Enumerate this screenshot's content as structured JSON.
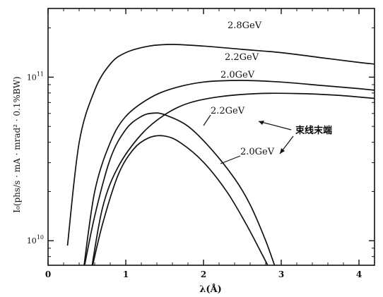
{
  "chart_data": {
    "type": "line",
    "xlabel": "λ(Å)",
    "ylabel": "I₀(phs/s · mA · mrad² · 0.1%BW)",
    "xlim": [
      0,
      4.2
    ],
    "ylim_log10": [
      9.85,
      11.42
    ],
    "x_ticks": [
      "0",
      "1",
      "2",
      "3",
      "4"
    ],
    "y_ticks": [
      {
        "value": 10,
        "base": "10",
        "exp": "10"
      },
      {
        "value": 11,
        "base": "10",
        "exp": "11"
      }
    ],
    "y_scale": "log",
    "annotation": "束线末端",
    "series": [
      {
        "name": "2.8GeV",
        "points": [
          [
            0.25,
            9.97
          ],
          [
            0.4,
            10.6
          ],
          [
            0.6,
            10.92
          ],
          [
            0.8,
            11.08
          ],
          [
            1.0,
            11.15
          ],
          [
            1.3,
            11.19
          ],
          [
            1.6,
            11.2
          ],
          [
            2.0,
            11.19
          ],
          [
            2.5,
            11.17
          ],
          [
            3.0,
            11.15
          ],
          [
            3.5,
            11.12
          ],
          [
            4.0,
            11.09
          ],
          [
            4.2,
            11.08
          ]
        ]
      },
      {
        "name": "2.2GeV",
        "points": [
          [
            0.45,
            9.8
          ],
          [
            0.6,
            10.3
          ],
          [
            0.8,
            10.6
          ],
          [
            1.0,
            10.76
          ],
          [
            1.3,
            10.87
          ],
          [
            1.6,
            10.93
          ],
          [
            2.0,
            10.97
          ],
          [
            2.5,
            10.98
          ],
          [
            3.0,
            10.97
          ],
          [
            3.5,
            10.95
          ],
          [
            4.0,
            10.93
          ],
          [
            4.2,
            10.92
          ]
        ]
      },
      {
        "name": "2.0GeV",
        "points": [
          [
            0.55,
            9.8
          ],
          [
            0.7,
            10.2
          ],
          [
            0.9,
            10.45
          ],
          [
            1.2,
            10.65
          ],
          [
            1.5,
            10.77
          ],
          [
            1.8,
            10.84
          ],
          [
            2.2,
            10.88
          ],
          [
            2.7,
            10.9
          ],
          [
            3.2,
            10.9
          ],
          [
            3.7,
            10.89
          ],
          [
            4.2,
            10.87
          ]
        ]
      },
      {
        "name": "2.2GeV",
        "points": [
          [
            0.45,
            9.8
          ],
          [
            0.6,
            10.15
          ],
          [
            0.8,
            10.5
          ],
          [
            1.0,
            10.68
          ],
          [
            1.2,
            10.76
          ],
          [
            1.35,
            10.78
          ],
          [
            1.5,
            10.77
          ],
          [
            1.8,
            10.7
          ],
          [
            2.1,
            10.56
          ],
          [
            2.4,
            10.38
          ],
          [
            2.6,
            10.22
          ],
          [
            2.8,
            10.0
          ],
          [
            2.95,
            9.8
          ]
        ]
      },
      {
        "name": "2.0GeV",
        "points": [
          [
            0.55,
            9.8
          ],
          [
            0.7,
            10.1
          ],
          [
            0.9,
            10.4
          ],
          [
            1.1,
            10.56
          ],
          [
            1.3,
            10.63
          ],
          [
            1.5,
            10.64
          ],
          [
            1.7,
            10.6
          ],
          [
            2.0,
            10.48
          ],
          [
            2.3,
            10.3
          ],
          [
            2.55,
            10.1
          ],
          [
            2.75,
            9.92
          ],
          [
            2.88,
            9.8
          ]
        ]
      }
    ]
  }
}
